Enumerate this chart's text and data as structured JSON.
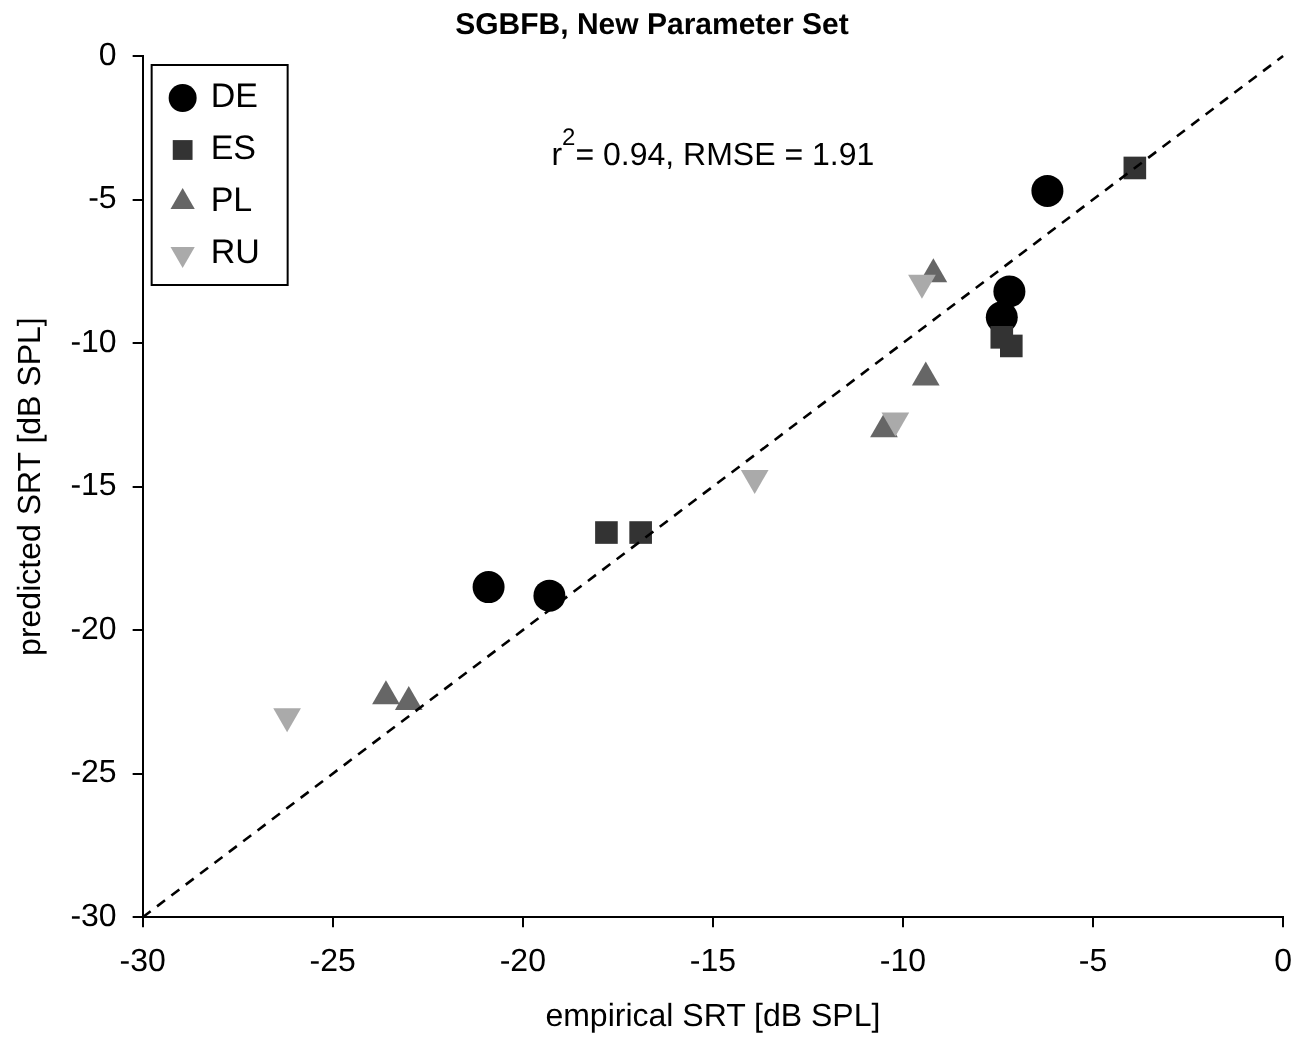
{
  "chart_data": {
    "type": "scatter",
    "title": "SGBFB, New Parameter Set",
    "xlabel": "empirical SRT [dB SPL]",
    "ylabel": "predicted SRT [dB SPL]",
    "annotations": [
      "r$^{2}$= 0.94, RMSE = 1.91"
    ],
    "xlim": [
      -30,
      0
    ],
    "ylim": [
      -30,
      0
    ],
    "xticks": [
      -30,
      -25,
      -20,
      -15,
      -10,
      -5,
      0
    ],
    "yticks": [
      -30,
      -25,
      -20,
      -15,
      -10,
      -5,
      0
    ],
    "grid": false,
    "legend": "top left",
    "series": [
      {
        "name": "DE",
        "color": "#000000",
        "marker": "circle",
        "x": [
          -6.2,
          -7.2,
          -7.4,
          -20.9,
          -19.3
        ],
        "values": [
          -4.7,
          -8.2,
          -9.1,
          -18.5,
          -18.8
        ]
      },
      {
        "name": "ES",
        "color": "#333333",
        "marker": "square",
        "x": [
          -3.9,
          -7.4,
          -7.15,
          -17.8,
          -16.9
        ],
        "values": [
          -3.9,
          -9.8,
          -10.1,
          -16.6,
          -16.6
        ]
      },
      {
        "name": "PL",
        "color": "#666666",
        "marker": "triangle",
        "x": [
          -9.2,
          -9.4,
          -10.5,
          -23.6,
          -23.0
        ],
        "values": [
          -7.6,
          -11.2,
          -13.0,
          -22.3,
          -22.5
        ]
      },
      {
        "name": "RU",
        "color": "#aaaaaa",
        "marker": "triangle-down",
        "x": [
          -9.5,
          -10.2,
          -13.9,
          -26.2
        ],
        "values": [
          -7.9,
          -12.7,
          -14.7,
          -23.0
        ]
      },
      {
        "type": "line",
        "color": "#000000",
        "marker": "none",
        "line_style": "dashed",
        "x": [
          -30,
          0
        ],
        "values": [
          -30,
          0
        ]
      }
    ]
  }
}
